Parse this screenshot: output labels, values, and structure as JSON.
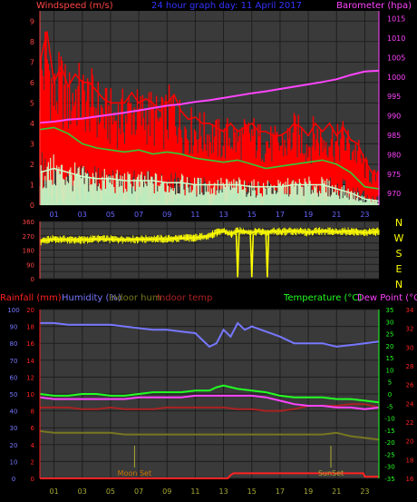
{
  "colors": {
    "background": "#000000",
    "plot_bg": "#3a3a3a",
    "grid": "#1e1e1e",
    "wind_gust": "#ff0000",
    "wind_avg": "#33cc33",
    "wind_lull": "#ccffcc",
    "barometer": "#ff44ff",
    "wind_dir": "#ffff00",
    "rainfall": "#ff2222",
    "humidity": "#7777ff",
    "indoor_hum": "#777722",
    "indoor_temp": "#aa2222",
    "temperature": "#22ff22",
    "dew_point": "#ff44ff",
    "title": "#3333ff",
    "left_axis": "#ff4444",
    "right_axis": "#ff44ff",
    "compass": "#ffff00"
  },
  "header": {
    "windspeed_label": "Windspeed (m/s)",
    "title": "24 hour graph day: 11 April 2017",
    "barometer_label": "Barometer (hpa)"
  },
  "compass": [
    "N",
    "W",
    "S",
    "E",
    "N"
  ],
  "bottom_legend": {
    "rainfall": "Rainfall (mm)",
    "humidity": "Humidity (%)",
    "indoor_hum": "Indoor hum",
    "indoor_temp": "Indoor temp",
    "temperature": "Temperature (°C)",
    "dew_point": "Dew Point (°C)"
  },
  "annotations": {
    "moon_set": "Moon Set",
    "sun_set": "SunSet"
  },
  "chart_data": [
    {
      "type": "line",
      "name": "wind",
      "x_ticks": [
        "01",
        "03",
        "05",
        "07",
        "09",
        "11",
        "13",
        "15",
        "17",
        "19",
        "21",
        "23"
      ],
      "xlim": [
        0,
        24
      ],
      "ylim": [
        0,
        9.5
      ],
      "y_ticks": [
        0,
        1,
        2,
        3,
        4,
        5,
        6,
        7,
        8,
        9
      ],
      "y2lim": [
        967,
        1017
      ],
      "y2_ticks": [
        970,
        975,
        980,
        985,
        990,
        995,
        1000,
        1005,
        1010,
        1015
      ],
      "series": [
        {
          "key": "gust",
          "color": "wind_gust",
          "x": [
            0,
            0.5,
            1,
            1.5,
            2,
            2.5,
            3,
            3.5,
            4,
            4.5,
            5,
            5.5,
            6,
            6.5,
            7,
            7.5,
            8,
            8.5,
            9,
            9.5,
            10,
            10.5,
            11,
            11.5,
            12,
            12.5,
            13,
            13.5,
            14,
            14.5,
            15,
            15.5,
            16,
            16.5,
            17,
            17.5,
            18,
            18.5,
            19,
            19.5,
            20,
            20.5,
            21,
            21.5,
            22,
            22.5,
            23,
            23.5,
            24
          ],
          "values": [
            7,
            8.5,
            6,
            6.8,
            5.8,
            6.4,
            6,
            6,
            5.6,
            5.2,
            5,
            5,
            5,
            5.5,
            5,
            5.2,
            5,
            4.6,
            5,
            5.4,
            4.6,
            4.2,
            4.3,
            4,
            4,
            3.8,
            3.6,
            4,
            3.6,
            3.8,
            4,
            3.6,
            3.6,
            3.4,
            3.4,
            3.6,
            4,
            3.8,
            3.4,
            4,
            3.6,
            4,
            3.4,
            3.8,
            3.2,
            3,
            2.2,
            1.6,
            1.5
          ]
        },
        {
          "key": "average",
          "color": "wind_avg",
          "x": [
            0,
            1,
            2,
            3,
            4,
            5,
            6,
            7,
            8,
            9,
            10,
            11,
            12,
            13,
            14,
            15,
            16,
            17,
            18,
            19,
            20,
            21,
            22,
            23,
            24
          ],
          "values": [
            3.7,
            3.8,
            3.5,
            3,
            2.8,
            2.7,
            2.6,
            2.7,
            2.5,
            2.6,
            2.5,
            2.3,
            2.2,
            2.1,
            2.2,
            2,
            1.8,
            1.9,
            2,
            2.1,
            2.2,
            2,
            1.6,
            0.9,
            0.8
          ]
        },
        {
          "key": "lull",
          "color": "wind_lull",
          "x": [
            0,
            1,
            2,
            3,
            4,
            5,
            6,
            7,
            8,
            9,
            10,
            11,
            12,
            13,
            14,
            15,
            16,
            17,
            18,
            19,
            20,
            21,
            22,
            23,
            24
          ],
          "values": [
            1.6,
            1.8,
            1.6,
            1.4,
            1.3,
            1.3,
            1.2,
            1.2,
            1.2,
            1.1,
            1.1,
            1,
            1,
            1,
            1,
            0.9,
            0.9,
            0.9,
            1,
            1,
            1,
            0.8,
            0.6,
            0.3,
            0.2
          ]
        },
        {
          "key": "barometer",
          "color": "barometer",
          "axis": "right",
          "x": [
            0,
            1,
            2,
            3,
            4,
            5,
            6,
            7,
            8,
            9,
            10,
            11,
            12,
            13,
            14,
            15,
            16,
            17,
            18,
            19,
            20,
            21,
            22,
            23,
            24
          ],
          "values": [
            988.2,
            988.5,
            989,
            989.3,
            989.8,
            990.3,
            990.8,
            991.4,
            992,
            992.6,
            993,
            993.6,
            994,
            994.6,
            995.2,
            995.8,
            996.3,
            996.9,
            997.5,
            998.1,
            998.7,
            999.4,
            1000.5,
            1001.4,
            1001.6
          ]
        }
      ]
    },
    {
      "type": "line",
      "name": "wind_direction",
      "xlim": [
        0,
        24
      ],
      "ylim": [
        0,
        360
      ],
      "y_ticks": [
        0,
        45,
        90,
        135,
        180,
        225,
        270,
        315,
        360
      ],
      "series": [
        {
          "key": "direction",
          "color": "wind_dir",
          "x": [
            0,
            1,
            2,
            3,
            4,
            5,
            6,
            7,
            8,
            9,
            10,
            11,
            12,
            12.5,
            13,
            13.5,
            14,
            14.5,
            15,
            15.5,
            16,
            16.5,
            17,
            18,
            19,
            20,
            21,
            22,
            23,
            24
          ],
          "values": [
            235,
            250,
            245,
            245,
            250,
            248,
            246,
            248,
            250,
            250,
            255,
            258,
            270,
            290,
            300,
            280,
            300,
            295,
            290,
            300,
            290,
            300,
            295,
            300,
            292,
            300,
            295,
            298,
            290,
            296
          ]
        },
        {
          "key": "dips",
          "color": "wind_dir",
          "x": [
            13.9,
            14.0,
            14.1,
            14.9,
            15.0,
            15.1,
            16.0,
            16.1,
            16.2
          ],
          "values": [
            280,
            10,
            280,
            280,
            10,
            280,
            285,
            10,
            285
          ]
        }
      ]
    },
    {
      "type": "line",
      "name": "temperature_humidity",
      "x_ticks": [
        "01",
        "03",
        "05",
        "07",
        "09",
        "11",
        "13",
        "15",
        "17",
        "19",
        "21",
        "23"
      ],
      "xlim": [
        0,
        24
      ],
      "ylim": [
        0,
        100
      ],
      "y_ticks": [
        0,
        10,
        20,
        30,
        40,
        50,
        60,
        70,
        80,
        90,
        100
      ],
      "y2lim": [
        -35,
        35
      ],
      "y2_ticks": [
        -35,
        -30,
        -25,
        -20,
        -15,
        -10,
        -5,
        0,
        5,
        10,
        15,
        20,
        25,
        30,
        35
      ],
      "y3lim": [
        16,
        34
      ],
      "y3_ticks": [
        16,
        18,
        20,
        22,
        24,
        26,
        28,
        30,
        32,
        34
      ],
      "series": [
        {
          "key": "humidity",
          "color": "humidity",
          "x": [
            0,
            1,
            2,
            3,
            4,
            5,
            6,
            7,
            8,
            9,
            10,
            11,
            11.5,
            12,
            12.5,
            13,
            13.5,
            14,
            14.5,
            15,
            16,
            17,
            18,
            19,
            20,
            21,
            22,
            23,
            24
          ],
          "values": [
            92,
            92,
            91,
            91,
            91,
            91,
            90,
            89,
            88,
            88,
            87,
            86,
            82,
            78,
            80,
            88,
            84,
            92,
            88,
            90,
            87,
            84,
            80,
            80,
            80,
            78,
            79,
            80,
            81
          ]
        },
        {
          "key": "temperature",
          "color": "temperature",
          "x": [
            0,
            1,
            2,
            3,
            4,
            5,
            6,
            7,
            8,
            9,
            10,
            11,
            12,
            12.5,
            13,
            14,
            15,
            16,
            17,
            18,
            19,
            20,
            21,
            22,
            23,
            24
          ],
          "values": [
            50,
            49,
            49,
            50,
            50,
            49,
            49,
            50,
            51,
            51,
            51,
            52,
            52,
            54,
            55,
            53,
            52,
            51,
            49,
            48,
            48,
            48,
            47,
            47,
            46,
            45
          ]
        },
        {
          "key": "dew_point",
          "color": "dew_point",
          "x": [
            0,
            1,
            2,
            3,
            4,
            5,
            6,
            7,
            8,
            9,
            10,
            11,
            12,
            13,
            14,
            15,
            16,
            17,
            18,
            19,
            20,
            21,
            22,
            23,
            24
          ],
          "values": [
            48,
            47,
            47,
            47,
            47,
            47,
            47,
            48,
            48,
            48,
            48,
            49,
            49,
            49,
            49,
            49,
            48,
            46,
            44,
            43,
            43,
            42,
            42,
            41,
            42
          ]
        },
        {
          "key": "indoor_temp",
          "color": "indoor_temp",
          "x": [
            0,
            1,
            2,
            3,
            4,
            5,
            6,
            7,
            8,
            9,
            10,
            11,
            12,
            13,
            14,
            15,
            16,
            17,
            18,
            19,
            20,
            21,
            22,
            23,
            24
          ],
          "values": [
            42,
            42,
            42,
            41,
            41,
            42,
            41,
            41,
            41,
            42,
            42,
            42,
            42,
            42,
            41,
            41,
            40,
            40,
            41,
            43,
            43,
            43,
            44,
            44,
            42
          ]
        },
        {
          "key": "indoor_hum",
          "color": "indoor_hum",
          "x": [
            0,
            1,
            2,
            3,
            4,
            5,
            6,
            7,
            8,
            9,
            10,
            11,
            12,
            13,
            14,
            15,
            16,
            17,
            18,
            19,
            20,
            21,
            22,
            23,
            24
          ],
          "values": [
            28,
            27,
            27,
            27,
            27,
            27,
            26,
            26,
            26,
            26,
            26,
            26,
            26,
            26,
            26,
            26,
            26,
            26,
            26,
            26,
            26,
            27,
            25,
            24,
            23
          ]
        },
        {
          "key": "rainfall",
          "color": "rainfall",
          "x": [
            0,
            13.3,
            13.5,
            13.7,
            14,
            22.9,
            23,
            24
          ],
          "values": [
            0,
            0,
            2,
            3,
            3,
            3,
            1,
            1
          ]
        }
      ]
    }
  ]
}
